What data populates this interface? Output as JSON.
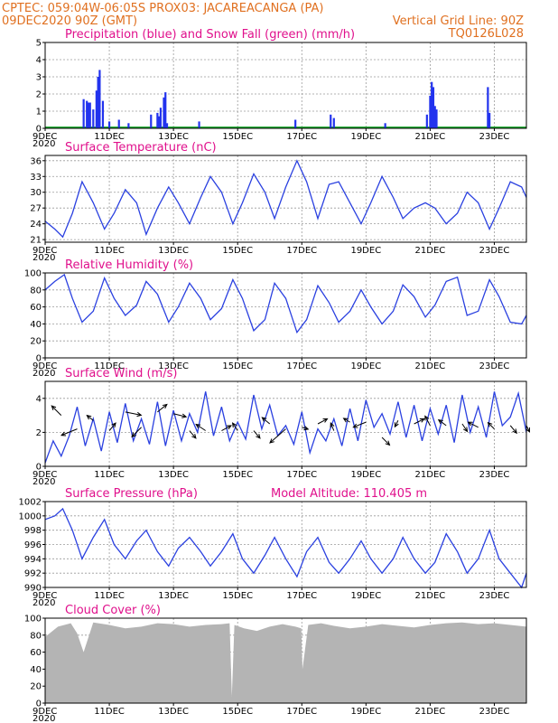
{
  "header": {
    "left_line1": "CPTEC:   059:04W-06:05S   PROX03: JACAREACANGA (PA)",
    "left_line2": "09DEC2020 90Z (GMT)",
    "right_line2": "Vertical Grid Line: 90Z",
    "right_line3": "TQ0126L028"
  },
  "x_axis": {
    "ticks": [
      "9DEC",
      "11DEC",
      "13DEC",
      "15DEC",
      "17DEC",
      "19DEC",
      "21DEC",
      "23DEC"
    ],
    "tick_positions": [
      0,
      2,
      4,
      6,
      8,
      10,
      12,
      14
    ],
    "range": [
      0,
      15
    ],
    "unit": "days since 09DEC 00Z",
    "clipped_label": "2020"
  },
  "colors": {
    "precip": "#2233ee",
    "snow": "#22aa33",
    "line": "#2a40e0",
    "cloud": "#b4b4b4",
    "title": "#e0108c",
    "header": "#e07020"
  },
  "chart_data": [
    {
      "id": "precip",
      "type": "bar",
      "title": "Precipitation (blue) and Snow Fall (green) (mm/h)",
      "ylim": [
        0,
        5
      ],
      "yticks": [
        0,
        1,
        2,
        3,
        4,
        5
      ],
      "x": [
        1.2,
        1.3,
        1.35,
        1.4,
        1.5,
        1.6,
        1.65,
        1.7,
        1.8,
        2.0,
        2.3,
        2.6,
        3.3,
        3.5,
        3.55,
        3.6,
        3.7,
        3.75,
        3.8,
        4.8,
        7.8,
        8.9,
        9.0,
        10.6,
        11.9,
        12.0,
        12.05,
        12.1,
        12.15,
        12.2,
        13.8,
        13.85
      ],
      "values": [
        1.7,
        1.6,
        1.5,
        1.5,
        1.1,
        2.2,
        3.0,
        3.4,
        1.6,
        0.4,
        0.5,
        0.3,
        0.8,
        0.9,
        0.7,
        1.2,
        1.8,
        2.1,
        0.3,
        0.4,
        0.5,
        0.8,
        0.6,
        0.3,
        0.8,
        1.9,
        2.7,
        2.4,
        1.3,
        1.1,
        2.4,
        0.9
      ],
      "snow_values": "all 0"
    },
    {
      "id": "temperature",
      "type": "line",
      "title": "Surface Temperature (nC)",
      "ylim": [
        20.5,
        37
      ],
      "yticks": [
        21,
        24,
        27,
        30,
        33,
        36
      ],
      "x": [
        0,
        0.3,
        0.55,
        0.85,
        1.15,
        1.5,
        1.85,
        2.15,
        2.5,
        2.85,
        3.15,
        3.5,
        3.85,
        4.15,
        4.5,
        4.85,
        5.15,
        5.5,
        5.85,
        6.15,
        6.5,
        6.85,
        7.15,
        7.5,
        7.85,
        8.15,
        8.5,
        8.85,
        9.15,
        9.5,
        9.85,
        10.15,
        10.5,
        10.85,
        11.15,
        11.5,
        11.85,
        12.15,
        12.5,
        12.85,
        13.15,
        13.5,
        13.85,
        14.15,
        14.5,
        14.85,
        15
      ],
      "values": [
        24.5,
        23,
        21.5,
        26,
        32,
        28,
        23,
        26,
        30.5,
        28,
        22,
        27,
        31,
        28,
        24,
        29,
        33,
        30,
        24,
        28,
        33.5,
        30,
        25,
        31,
        36,
        32,
        25,
        31.5,
        32,
        28,
        24,
        28,
        33,
        29,
        25,
        27,
        28,
        27,
        24,
        26,
        30,
        28,
        23,
        27,
        32,
        31,
        29
      ]
    },
    {
      "id": "humidity",
      "type": "line",
      "title": "Relative Humidity (%)",
      "ylim": [
        0,
        100
      ],
      "yticks": [
        0,
        20,
        40,
        60,
        80,
        100
      ],
      "x": [
        0,
        0.3,
        0.6,
        0.85,
        1.15,
        1.5,
        1.85,
        2.15,
        2.5,
        2.85,
        3.15,
        3.5,
        3.85,
        4.15,
        4.5,
        4.85,
        5.15,
        5.5,
        5.85,
        6.15,
        6.5,
        6.85,
        7.15,
        7.5,
        7.85,
        8.15,
        8.5,
        8.85,
        9.15,
        9.5,
        9.85,
        10.15,
        10.5,
        10.85,
        11.15,
        11.5,
        11.85,
        12.15,
        12.5,
        12.85,
        13.15,
        13.5,
        13.85,
        14.15,
        14.5,
        14.85,
        15
      ],
      "values": [
        80,
        90,
        98,
        70,
        42,
        55,
        94,
        70,
        50,
        62,
        90,
        75,
        42,
        60,
        88,
        70,
        45,
        58,
        92,
        70,
        32,
        45,
        88,
        70,
        30,
        45,
        85,
        65,
        42,
        55,
        80,
        60,
        40,
        55,
        86,
        72,
        48,
        62,
        90,
        95,
        50,
        55,
        92,
        72,
        42,
        40,
        50
      ]
    },
    {
      "id": "wind",
      "type": "line",
      "title": "Surface Wind (m/s)",
      "ylim": [
        0,
        5
      ],
      "yticks": [
        0,
        2,
        4
      ],
      "x": [
        0,
        0.25,
        0.5,
        0.75,
        1.0,
        1.25,
        1.5,
        1.75,
        2.0,
        2.25,
        2.5,
        2.75,
        3.0,
        3.25,
        3.5,
        3.75,
        4.0,
        4.25,
        4.5,
        4.75,
        5.0,
        5.25,
        5.5,
        5.75,
        6.0,
        6.25,
        6.5,
        6.75,
        7.0,
        7.25,
        7.5,
        7.75,
        8.0,
        8.25,
        8.5,
        8.75,
        9.0,
        9.25,
        9.5,
        9.75,
        10.0,
        10.25,
        10.5,
        10.75,
        11.0,
        11.25,
        11.5,
        11.75,
        12.0,
        12.25,
        12.5,
        12.75,
        13.0,
        13.25,
        13.5,
        13.75,
        14.0,
        14.25,
        14.5,
        14.75,
        15.0
      ],
      "values": [
        0.2,
        1.5,
        0.6,
        1.8,
        3.5,
        1.2,
        2.8,
        0.9,
        3.2,
        1.4,
        3.7,
        1.5,
        2.8,
        1.3,
        3.8,
        1.2,
        3.3,
        1.5,
        3.1,
        2.0,
        4.4,
        1.8,
        3.5,
        1.5,
        2.6,
        1.6,
        4.2,
        2.2,
        3.6,
        1.8,
        2.4,
        1.3,
        3.2,
        0.8,
        2.2,
        1.5,
        2.8,
        1.2,
        3.4,
        1.5,
        3.9,
        2.3,
        3.1,
        1.9,
        3.8,
        1.7,
        3.6,
        1.5,
        3.4,
        1.9,
        3.6,
        1.4,
        4.2,
        2.0,
        3.5,
        1.7,
        4.4,
        2.4,
        2.9,
        4.3,
        2.0
      ],
      "arrows_x": [
        0.5,
        1.0,
        1.5,
        2.0,
        2.5,
        3.0,
        3.5,
        4.0,
        4.5,
        5.0,
        5.5,
        6.0,
        6.5,
        7.0,
        7.5,
        8.0,
        8.5,
        9.0,
        9.5,
        10.0,
        10.5,
        11.0,
        11.5,
        12.0,
        12.5,
        13.0,
        13.5,
        14.0,
        14.5,
        15.0
      ],
      "arrows_y": [
        3.0,
        2.2,
        2.7,
        2.1,
        3.2,
        2.3,
        3.2,
        3.1,
        2.1,
        2.1,
        2.1,
        2.1,
        2.1,
        2.5,
        2.2,
        2.3,
        2.5,
        2.1,
        2.6,
        2.6,
        1.7,
        2.7,
        2.5,
        2.4,
        2.4,
        2.5,
        2.3,
        2.2,
        2.4,
        2.4
      ],
      "arrows_u": [
        -1.5,
        -2.5,
        -1.0,
        1.0,
        2.5,
        -1.5,
        1.5,
        2.0,
        1.0,
        -1.5,
        1.5,
        -0.8,
        1.0,
        -1.2,
        -2.5,
        1.0,
        1.5,
        -0.5,
        -1.0,
        -2.0,
        1.2,
        -0.5,
        1.6,
        -0.8,
        -1.2,
        0.8,
        -1.6,
        -1.0,
        1.0,
        0.5
      ],
      "arrows_v": [
        1.5,
        -1.0,
        0.8,
        1.2,
        -0.5,
        -1.5,
        1.2,
        -0.5,
        -1.2,
        1.0,
        0.8,
        1.2,
        -1.2,
        1.0,
        -2.2,
        -0.3,
        0.8,
        1.2,
        0.6,
        -0.8,
        -1.2,
        -1.0,
        0.8,
        1.5,
        0.9,
        -1.2,
        0.8,
        1.0,
        -1.2,
        -1.0
      ]
    },
    {
      "id": "pressure",
      "type": "line",
      "title": "Surface Pressure (hPa)",
      "annotation": "Model Altitude: 110.405 m",
      "ylim": [
        990,
        1002
      ],
      "yticks": [
        990,
        992,
        994,
        996,
        998,
        1000,
        1002
      ],
      "x": [
        0,
        0.3,
        0.55,
        0.85,
        1.15,
        1.5,
        1.85,
        2.15,
        2.5,
        2.85,
        3.15,
        3.5,
        3.85,
        4.15,
        4.5,
        4.85,
        5.15,
        5.5,
        5.85,
        6.15,
        6.5,
        6.85,
        7.15,
        7.5,
        7.85,
        8.15,
        8.5,
        8.85,
        9.15,
        9.5,
        9.85,
        10.15,
        10.5,
        10.85,
        11.15,
        11.5,
        11.85,
        12.15,
        12.5,
        12.85,
        13.15,
        13.5,
        13.85,
        14.15,
        14.5,
        14.85,
        15
      ],
      "values": [
        999.5,
        1000,
        1001,
        998,
        994,
        997,
        999.5,
        996,
        994,
        996.5,
        998,
        995,
        993,
        995.5,
        997,
        995,
        993,
        995,
        997.5,
        994,
        992,
        994.5,
        997,
        994,
        991.5,
        995,
        997,
        993.5,
        992,
        994,
        996.5,
        994,
        992,
        994,
        997,
        994,
        992,
        993.5,
        997.5,
        995,
        992,
        994,
        998,
        994,
        992,
        990,
        992
      ]
    },
    {
      "id": "cloud",
      "type": "area",
      "title": "Cloud Cover (%)",
      "ylim": [
        0,
        100
      ],
      "yticks": [
        0,
        20,
        40,
        60,
        80,
        100
      ],
      "x": [
        0,
        0.4,
        0.8,
        1.0,
        1.2,
        1.5,
        2.0,
        2.5,
        3.0,
        3.5,
        4.0,
        4.5,
        5.0,
        5.5,
        5.75,
        5.82,
        5.9,
        6.2,
        6.6,
        7.0,
        7.4,
        7.8,
        7.98,
        8.02,
        8.2,
        8.6,
        9.0,
        9.5,
        10.0,
        10.5,
        11.0,
        11.5,
        12.0,
        12.5,
        13.0,
        13.5,
        14.0,
        14.5,
        15.0
      ],
      "values": [
        78,
        90,
        94,
        82,
        60,
        95,
        92,
        88,
        90,
        94,
        93,
        90,
        92,
        93,
        94,
        8,
        92,
        88,
        85,
        90,
        93,
        90,
        88,
        40,
        92,
        94,
        91,
        88,
        90,
        93,
        91,
        89,
        92,
        94,
        95,
        93,
        94,
        92,
        90
      ]
    }
  ]
}
